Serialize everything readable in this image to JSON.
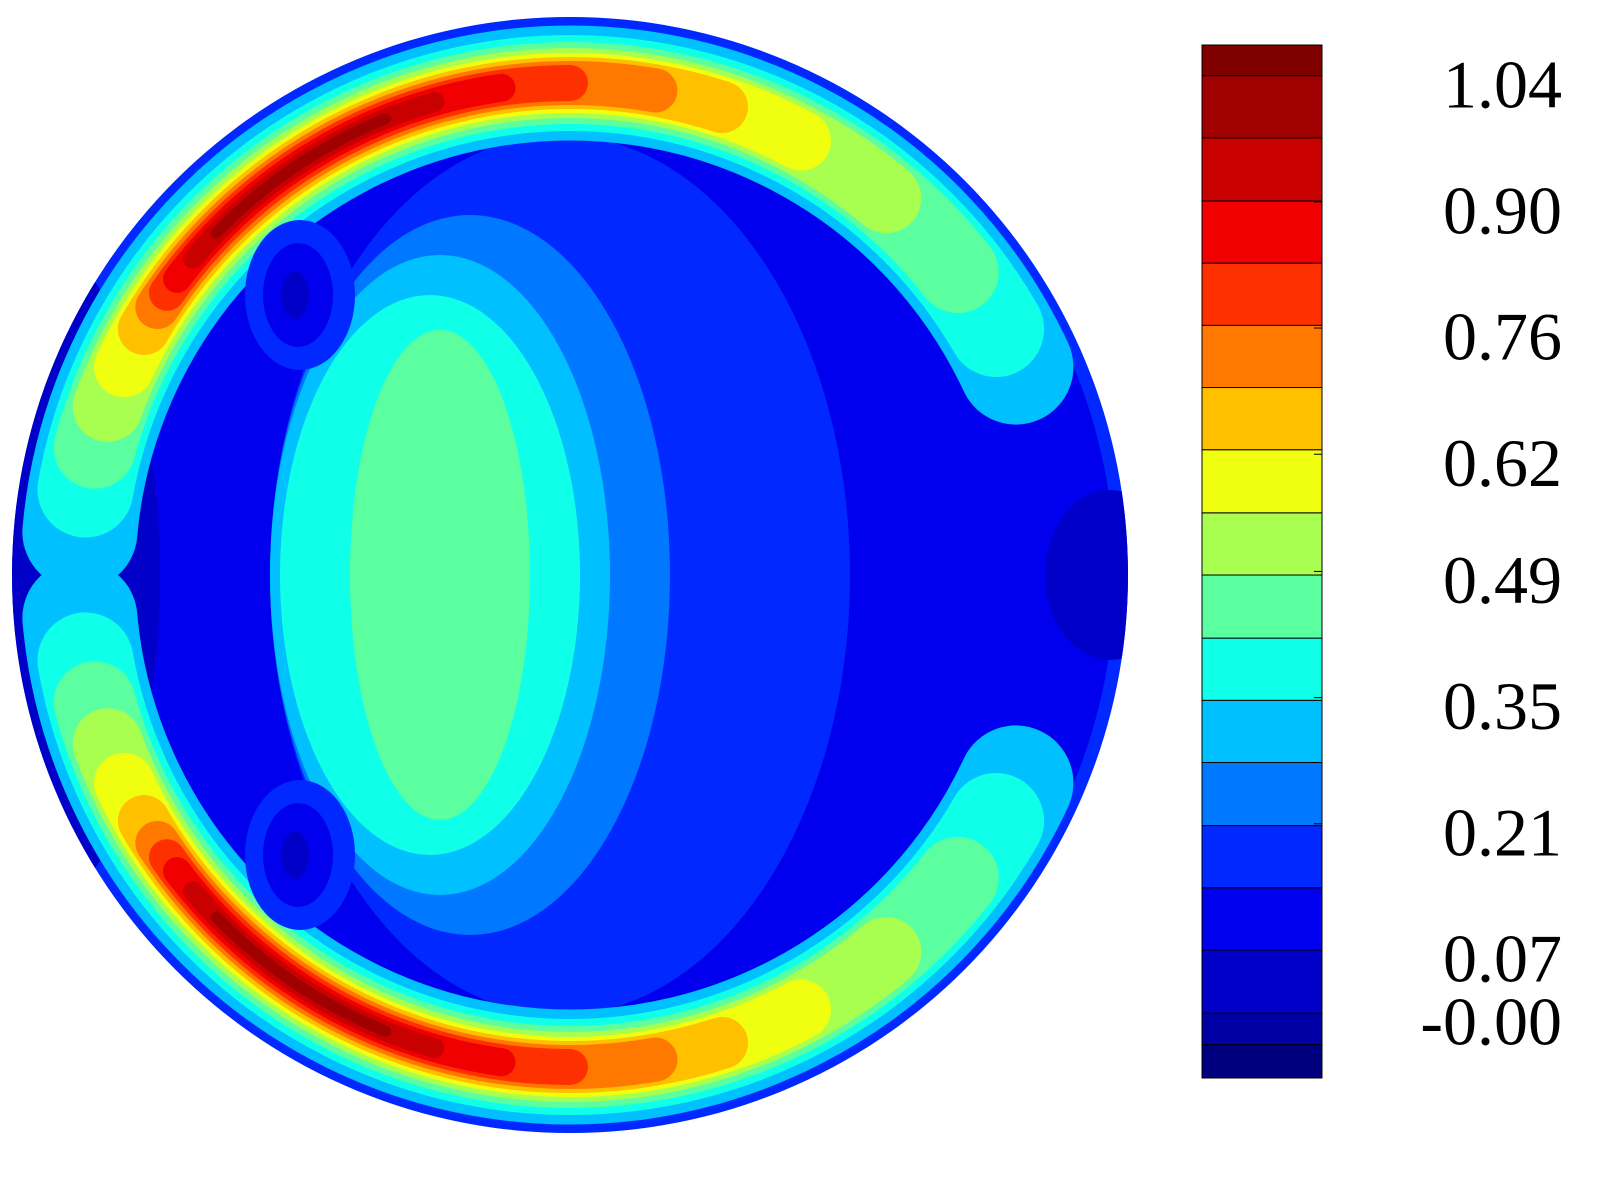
{
  "chart_data": {
    "type": "contour",
    "levels": [
      -0.072,
      -0.035,
      0.0,
      0.07,
      0.139,
      0.208,
      0.278,
      0.347,
      0.416,
      0.486,
      0.555,
      0.625,
      0.694,
      0.763,
      0.832,
      0.901,
      0.971,
      1.04,
      1.074
    ],
    "colors": [
      "#00007f",
      "#0000a5",
      "#0000c8",
      "#0000ee",
      "#0028ff",
      "#0078ff",
      "#00c0ff",
      "#10ffe8",
      "#5cffa0",
      "#a8ff50",
      "#f0ff10",
      "#ffc000",
      "#ff7800",
      "#ff3000",
      "#f00000",
      "#c80000",
      "#a00000",
      "#800000"
    ],
    "ylim": [
      -0.072,
      1.074
    ],
    "yticks": [
      1.04,
      {
        "value": 0.9,
        "label": "0.90"
      },
      0.76,
      0.62,
      0.49,
      0.35,
      0.21,
      0.07,
      {
        "value": 0,
        "label": "-0.00"
      }
    ]
  }
}
